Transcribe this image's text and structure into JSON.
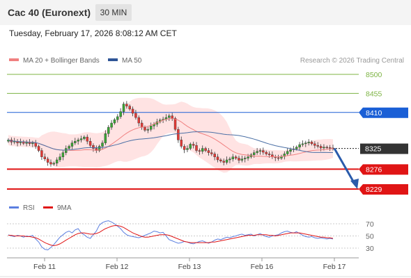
{
  "header": {
    "title": "Cac 40 (Euronext)",
    "timeframe": "30 MIN",
    "timestamp": "Tuesday, February 17, 2026 8:08:12 AM CET"
  },
  "colors": {
    "resistance": "#7cb342",
    "pivot": "#1a5fd6",
    "support": "#e01515",
    "last": "#333333",
    "candle_up": "#3aa635",
    "candle_down": "#e53935",
    "bollinger": "#ffdede",
    "ma20": "#f08080",
    "ma50": "#4a6fa5",
    "rsi": "#5b7fe0",
    "rsi_ma": "#e01515"
  },
  "chart_data": [
    {
      "type": "candlestick",
      "title": "",
      "legend": [
        {
          "name": "MA 20 + Bollinger Bands",
          "color": "#f08080"
        },
        {
          "name": "MA 50",
          "color": "#2f5597"
        }
      ],
      "legend_position": "top-left",
      "watermark": "Research © 2026 Trading Central",
      "x_ticks": [
        "Feb 11",
        "Feb 12",
        "Feb 13",
        "Feb 16",
        "Feb 17"
      ],
      "ylim": [
        8222,
        8502
      ],
      "levels": [
        {
          "label": "8500",
          "value": 8500,
          "role": "resistance"
        },
        {
          "label": "8455",
          "value": 8455,
          "role": "resistance"
        },
        {
          "label": "8410",
          "value": 8410,
          "role": "pivot"
        },
        {
          "label": "8325",
          "value": 8325,
          "role": "last"
        },
        {
          "label": "8276",
          "value": 8276,
          "role": "support"
        },
        {
          "label": "8229",
          "value": 8229,
          "role": "support"
        }
      ],
      "forecast": {
        "from": 8325,
        "to": 8229,
        "direction": "down"
      },
      "close": [
        8345,
        8340,
        8342,
        8338,
        8341,
        8337,
        8339,
        8336,
        8338,
        8330,
        8320,
        8305,
        8300,
        8292,
        8288,
        8290,
        8298,
        8305,
        8315,
        8325,
        8330,
        8338,
        8342,
        8345,
        8348,
        8352,
        8342,
        8332,
        8325,
        8320,
        8330,
        8338,
        8360,
        8375,
        8385,
        8393,
        8400,
        8412,
        8430,
        8425,
        8418,
        8408,
        8398,
        8385,
        8375,
        8368,
        8370,
        8378,
        8382,
        8388,
        8392,
        8394,
        8398,
        8402,
        8396,
        8370,
        8345,
        8330,
        8322,
        8325,
        8335,
        8332,
        8320,
        8318,
        8325,
        8320,
        8315,
        8312,
        8305,
        8298,
        8295,
        8292,
        8298,
        8300,
        8305,
        8302,
        8297,
        8300,
        8302,
        8305,
        8310,
        8315,
        8318,
        8320,
        8316,
        8312,
        8310,
        8305,
        8303,
        8302,
        8306,
        8312,
        8318,
        8322,
        8324,
        8328,
        8334,
        8336,
        8338,
        8340,
        8336,
        8332,
        8330,
        8326,
        8328,
        8327,
        8326,
        8325
      ]
    },
    {
      "type": "line",
      "title": "",
      "legend": [
        {
          "name": "RSI",
          "color": "#5b7fe0"
        },
        {
          "name": "9MA",
          "color": "#e01515"
        }
      ],
      "legend_position": "top-left",
      "ylim": [
        22,
        78
      ],
      "y_ticks": [
        70,
        50,
        30
      ],
      "series": [
        {
          "name": "RSI",
          "values": [
            52,
            50,
            49,
            51,
            50,
            48,
            50,
            49,
            51,
            45,
            40,
            32,
            28,
            27,
            31,
            36,
            42,
            48,
            52,
            56,
            58,
            55,
            60,
            62,
            55,
            52,
            48,
            46,
            52,
            58,
            68,
            72,
            74,
            75,
            73,
            70,
            66,
            62,
            56,
            52,
            50,
            49,
            48,
            47,
            49,
            51,
            53,
            55,
            58,
            57,
            55,
            56,
            50,
            44,
            42,
            40,
            38,
            39,
            41,
            40,
            38,
            37,
            39,
            41,
            42,
            40,
            38,
            40,
            43,
            45,
            44,
            46,
            48,
            47,
            49,
            50,
            52,
            53,
            51,
            52,
            53,
            50,
            52,
            54,
            51,
            49,
            48,
            50,
            51,
            52,
            55,
            57,
            58,
            56,
            55,
            57,
            54,
            51,
            49,
            48,
            49,
            47,
            46,
            47,
            46,
            45,
            46,
            45
          ]
        },
        {
          "name": "9MA",
          "values": [
            51,
            51,
            50,
            50,
            50,
            50,
            49,
            49,
            48,
            47,
            45,
            42,
            39,
            37,
            35,
            34,
            35,
            37,
            40,
            43,
            46,
            49,
            52,
            54,
            55,
            55,
            54,
            53,
            53,
            54,
            56,
            59,
            62,
            64,
            66,
            67,
            67,
            66,
            64,
            61,
            58,
            55,
            53,
            51,
            49,
            48,
            48,
            49,
            50,
            51,
            52,
            52,
            52,
            51,
            49,
            47,
            45,
            43,
            41,
            40,
            39,
            39,
            39,
            39,
            39,
            39,
            39,
            40,
            40,
            41,
            42,
            43,
            44,
            45,
            46,
            47,
            48,
            49,
            50,
            51,
            51,
            51,
            52,
            52,
            52,
            52,
            51,
            51,
            50,
            51,
            52,
            53,
            54,
            55,
            55,
            55,
            55,
            54,
            53,
            52,
            51,
            50,
            49,
            48,
            48,
            47,
            47,
            46
          ]
        }
      ]
    }
  ]
}
